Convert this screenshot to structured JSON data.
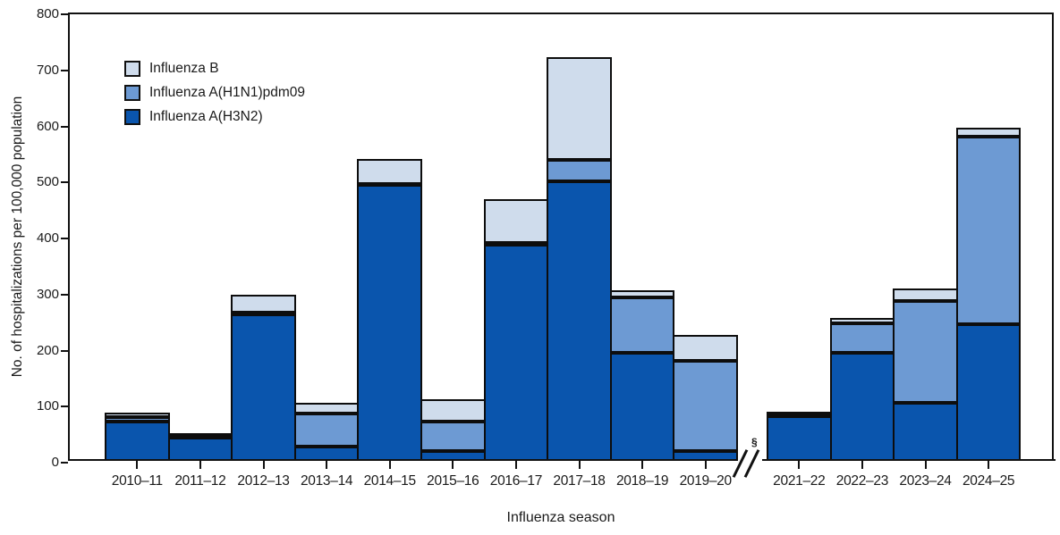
{
  "chart_data": {
    "type": "bar",
    "stacked": true,
    "title": "",
    "xlabel": "Influenza season",
    "ylabel": "No. of hospitalizations per 100,000 population",
    "ylim": [
      0,
      800
    ],
    "yticks": [
      0,
      100,
      200,
      300,
      400,
      500,
      600,
      700,
      800
    ],
    "grid": false,
    "legend_position": "top-left-inside",
    "categories": [
      "2010–11",
      "2011–12",
      "2012–13",
      "2013–14",
      "2014–15",
      "2015–16",
      "2016–17",
      "2017–18",
      "2018–19",
      "2019–20",
      "2021–22",
      "2022–23",
      "2023–24",
      "2024–25"
    ],
    "series": [
      {
        "name": "Influenza A(H3N2)",
        "color": "#0a55ad",
        "values": [
          70,
          41,
          262,
          26,
          492,
          18,
          385,
          499,
          193,
          18,
          80,
          193,
          103,
          244
        ]
      },
      {
        "name": "Influenza A(H1N1)pdm09",
        "color": "#6d9ad3",
        "values": [
          8,
          2,
          2,
          58,
          2,
          52,
          4,
          38,
          99,
          160,
          2,
          53,
          183,
          334
        ]
      },
      {
        "name": "Influenza B",
        "color": "#cfdcec",
        "values": [
          8,
          3,
          33,
          19,
          45,
          40,
          78,
          183,
          13,
          46,
          2,
          9,
          22,
          16
        ]
      }
    ],
    "totals": [
      86,
      46,
      297,
      103,
      539,
      110,
      467,
      720,
      305,
      224,
      84,
      255,
      308,
      594
    ],
    "legend": {
      "items": [
        {
          "label": "Influenza B",
          "color": "#cfdcec"
        },
        {
          "label": "Influenza A(H1N1)pdm09",
          "color": "#6d9ad3"
        },
        {
          "label": "Influenza A(H3N2)",
          "color": "#0a55ad"
        }
      ]
    },
    "axis_break": {
      "after_category": "2019–20",
      "symbol": "§"
    }
  }
}
